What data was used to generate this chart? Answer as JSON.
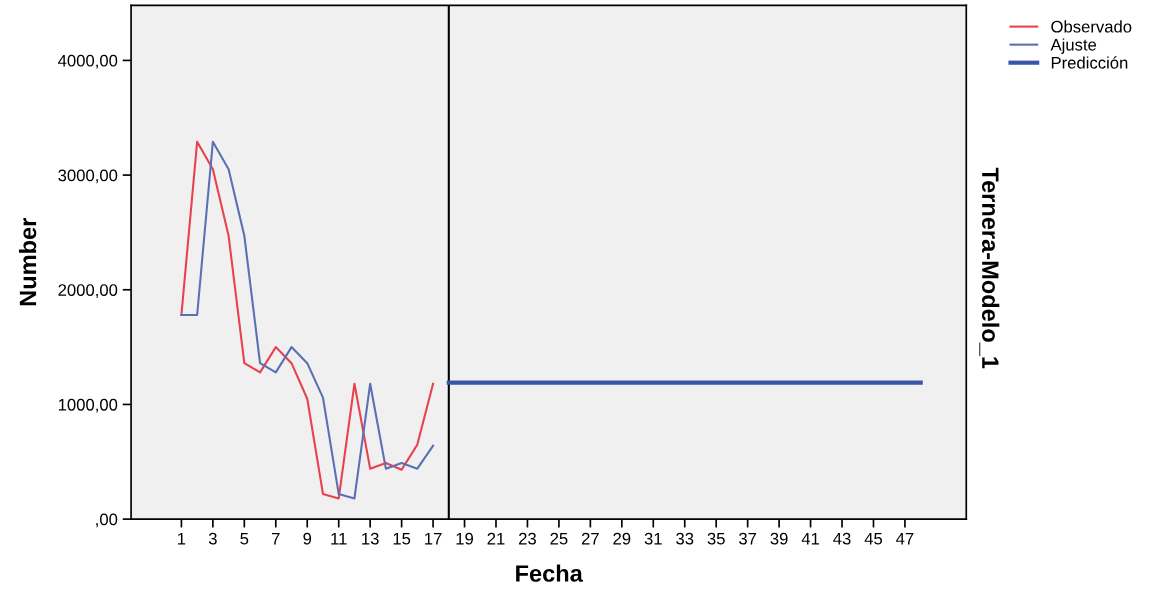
{
  "chart_data": {
    "type": "line",
    "xlabel": "Fecha",
    "ylabel": "Number",
    "annotations": [
      "Ternera-Modelo_1"
    ],
    "x": [
      1,
      2,
      3,
      4,
      5,
      6,
      7,
      8,
      9,
      10,
      11,
      12,
      13,
      14,
      15,
      16,
      17
    ],
    "series": [
      {
        "name": "Observado",
        "color": "#e8414f",
        "values": [
          1780,
          3290,
          3050,
          2470,
          1360,
          1280,
          1500,
          1360,
          1050,
          220,
          180,
          1180,
          440,
          490,
          430,
          650,
          1180
        ]
      },
      {
        "name": "Ajuste",
        "color": "#5b6fb5",
        "values": [
          1780,
          1780,
          3290,
          3050,
          2470,
          1360,
          1280,
          1500,
          1360,
          1060,
          220,
          180,
          1180,
          440,
          490,
          440,
          640
        ]
      },
      {
        "name": "Predicción",
        "color": "#3a55a8",
        "x": [
          18,
          48
        ],
        "values": [
          1190,
          1190
        ]
      }
    ],
    "xlim": [
      -2.2,
      50.9
    ],
    "ylim": [
      0,
      4480
    ],
    "xticks": [
      1,
      3,
      5,
      7,
      9,
      11,
      13,
      15,
      17,
      19,
      21,
      23,
      25,
      27,
      29,
      31,
      33,
      35,
      37,
      39,
      41,
      43,
      45,
      47
    ],
    "yticks": [
      {
        "value": 0,
        "label": ",00"
      },
      {
        "value": 1000,
        "label": "1000,00"
      },
      {
        "value": 2000,
        "label": "2000,00"
      },
      {
        "value": 3000,
        "label": "3000,00"
      },
      {
        "value": 4000,
        "label": "4000,00"
      }
    ],
    "ref_lines": [
      {
        "axis": "x",
        "value": 18,
        "color": "#000000"
      }
    ],
    "legend": "top right",
    "grid": false,
    "marker": "none",
    "line_style": "solid"
  }
}
